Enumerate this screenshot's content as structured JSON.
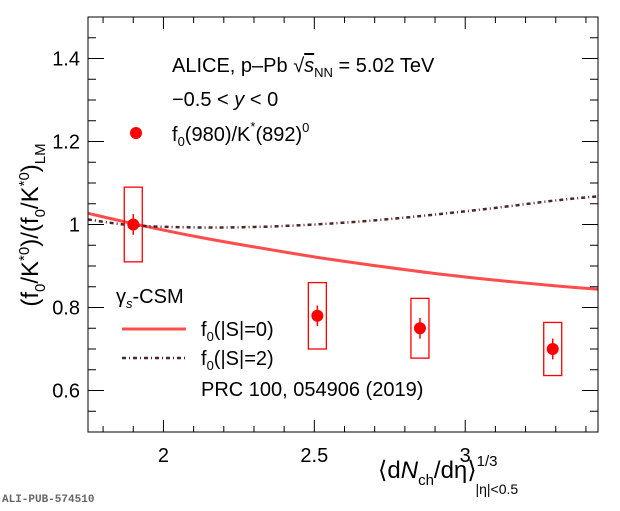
{
  "chart_data": {
    "type": "scatter",
    "title": "",
    "xlabel": "⟨dN_ch/dη⟩^{1/3}_{|η|<0.5}",
    "ylabel": "(f0/K*0)/(f0/K*0)_LM",
    "xlim": [
      1.75,
      3.44
    ],
    "ylim": [
      0.5,
      1.5
    ],
    "x_ticks": [
      2,
      2.5,
      3
    ],
    "x_tick_labels": [
      "2",
      "2.5",
      "3"
    ],
    "y_ticks": [
      0.6,
      0.8,
      1.0,
      1.2,
      1.4
    ],
    "y_tick_labels": [
      "0.6",
      "0.8",
      "1",
      "1.2",
      "1.4"
    ],
    "grid": false,
    "annotations": {
      "experiment": "ALICE, p–Pb",
      "energy_symbol": "√s_NN",
      "energy_value": "= 5.02 TeV",
      "rapidity": "−0.5 < y < 0",
      "model_title": "γs-CSM",
      "reference": "PRC 100, 054906 (2019)"
    },
    "series": [
      {
        "name": "f0(980)/K*(892)0",
        "kind": "data",
        "color": "#ff0000",
        "x": [
          1.9,
          2.51,
          2.85,
          3.29
        ],
        "y": [
          1.0,
          0.78,
          0.75,
          0.7
        ],
        "stat_err": [
          0.025,
          0.025,
          0.025,
          0.025
        ],
        "sys_err": [
          0.09,
          0.08,
          0.072,
          0.064
        ]
      },
      {
        "name": "f0(|S|=0)",
        "kind": "line",
        "style": "solid",
        "color": "#ff4d4d",
        "x": [
          1.75,
          1.9,
          2.1,
          2.3,
          2.5,
          2.7,
          2.9,
          3.1,
          3.3,
          3.44
        ],
        "y": [
          1.027,
          1.002,
          0.972,
          0.946,
          0.922,
          0.901,
          0.882,
          0.866,
          0.852,
          0.844
        ]
      },
      {
        "name": "f0(|S|=2)",
        "kind": "line",
        "style": "dash-dot",
        "color": "#4d2626",
        "x": [
          1.75,
          1.9,
          2.1,
          2.3,
          2.5,
          2.7,
          2.9,
          3.1,
          3.3,
          3.44
        ],
        "y": [
          1.012,
          0.998,
          0.993,
          0.994,
          1.0,
          1.01,
          1.024,
          1.04,
          1.058,
          1.068
        ]
      }
    ],
    "legend": [
      {
        "label": "f0(980)/K*(892)0",
        "marker": "circle"
      },
      {
        "label": "f0(|S|=0)",
        "marker": "line-solid"
      },
      {
        "label": "f0(|S|=2)",
        "marker": "line-dashdot"
      }
    ]
  },
  "footer": "ALI-PUB-574510"
}
